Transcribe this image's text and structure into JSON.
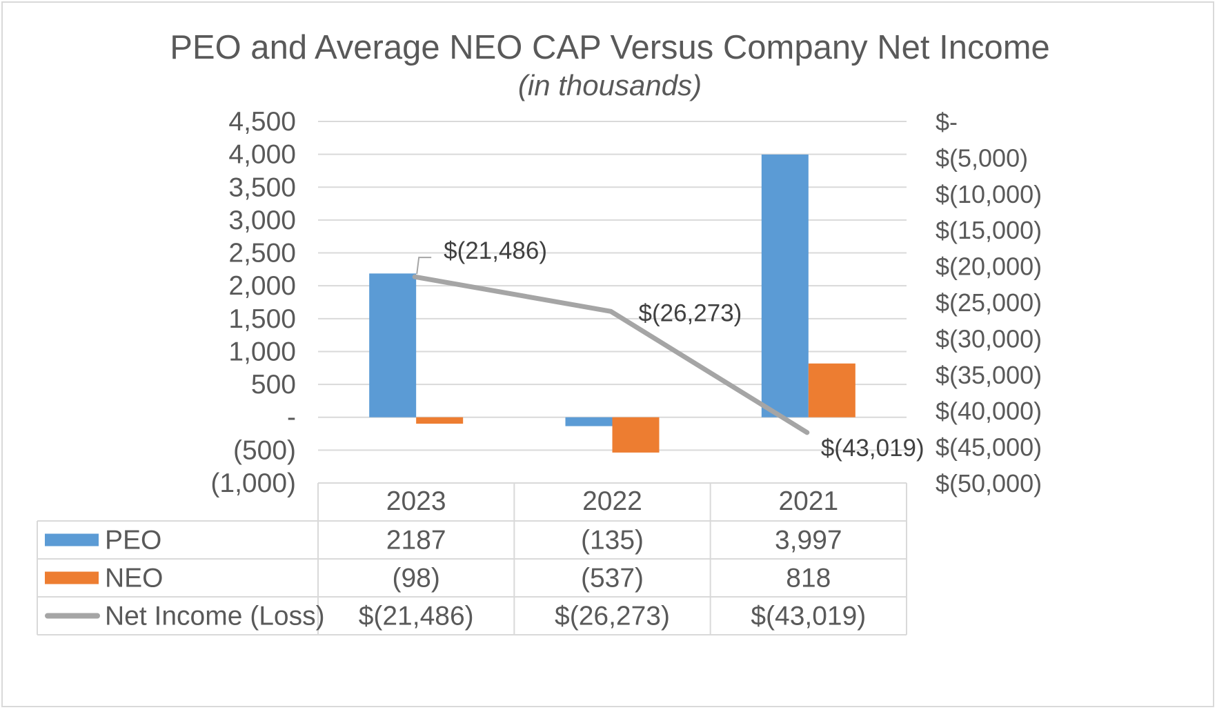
{
  "chart_data": {
    "type": "bar",
    "title": "PEO and Average NEO CAP Versus Company Net Income",
    "subtitle": "(in thousands)",
    "categories": [
      "2023",
      "2022",
      "2021"
    ],
    "series": [
      {
        "name": "PEO",
        "type": "bar",
        "axis": "left",
        "values": [
          2187,
          -135,
          3997
        ],
        "display": [
          "2187",
          "(135)",
          "3,997"
        ],
        "color": "#5b9bd5"
      },
      {
        "name": "NEO",
        "type": "bar",
        "axis": "left",
        "values": [
          -98,
          -537,
          818
        ],
        "display": [
          "(98)",
          "(537)",
          "818"
        ],
        "color": "#ed7d31"
      },
      {
        "name": "Net Income (Loss)",
        "type": "line",
        "axis": "right",
        "values": [
          -21486,
          -26273,
          -43019
        ],
        "display": [
          "$(21,486)",
          "$(26,273)",
          "$(43,019)"
        ],
        "color": "#a5a5a5"
      }
    ],
    "left_axis": {
      "ylim": [
        -1000,
        4500
      ],
      "ticks": [
        4500,
        4000,
        3500,
        3000,
        2500,
        2000,
        1500,
        1000,
        500,
        0,
        -500,
        -1000
      ],
      "tick_labels": [
        "4,500",
        "4,000",
        "3,500",
        "3,000",
        "2,500",
        "2,000",
        "1,500",
        "1,000",
        "500",
        "-",
        "(500)",
        "(1,000)"
      ]
    },
    "right_axis": {
      "ylim": [
        -50000,
        0
      ],
      "ticks": [
        0,
        -5000,
        -10000,
        -15000,
        -20000,
        -25000,
        -30000,
        -35000,
        -40000,
        -45000,
        -50000
      ],
      "tick_labels": [
        "$-",
        "$(5,000)",
        "$(10,000)",
        "$(15,000)",
        "$(20,000)",
        "$(25,000)",
        "$(30,000)",
        "$(35,000)",
        "$(40,000)",
        "$(45,000)",
        "$(50,000)"
      ]
    },
    "grid": true,
    "legend": "data-table"
  }
}
